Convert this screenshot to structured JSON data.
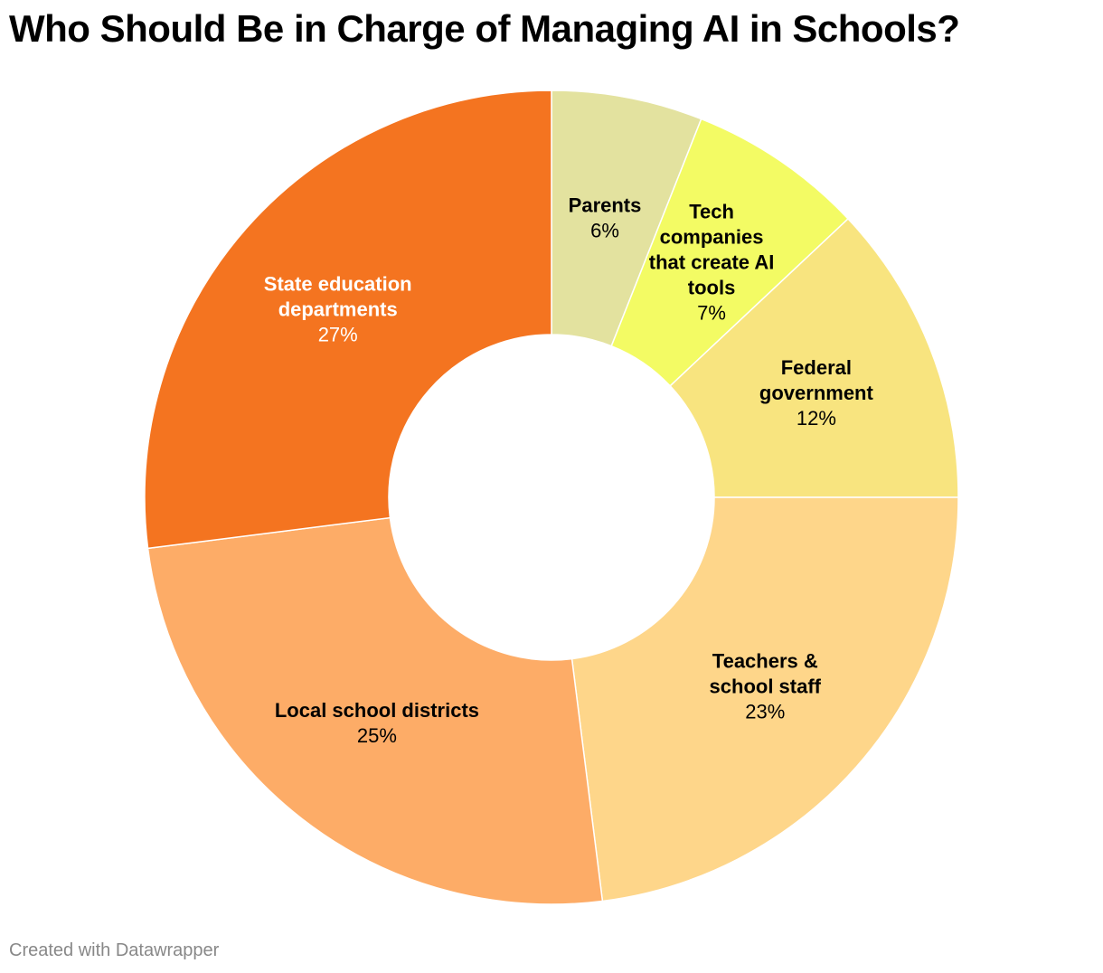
{
  "title": "Who Should Be in Charge of Managing AI in Schools?",
  "footer": {
    "credit": "Created with Datawrapper"
  },
  "chart_data": {
    "type": "pie",
    "donut": true,
    "title": "Who Should Be in Charge of Managing AI in Schools?",
    "unit": "%",
    "slices": [
      {
        "label": "Parents",
        "label_lines": [
          "Parents"
        ],
        "value": 6,
        "value_label": "6%",
        "color": "#e3e29f",
        "text_color": "#000000"
      },
      {
        "label": "Tech companies that create AI tools",
        "label_lines": [
          "Tech",
          "companies",
          "that create AI",
          "tools"
        ],
        "value": 7,
        "value_label": "7%",
        "color": "#f3fb64",
        "text_color": "#000000"
      },
      {
        "label": "Federal government",
        "label_lines": [
          "Federal",
          "government"
        ],
        "value": 12,
        "value_label": "12%",
        "color": "#f8e47f",
        "text_color": "#000000"
      },
      {
        "label": "Teachers & school staff",
        "label_lines": [
          "Teachers &",
          "school staff"
        ],
        "value": 23,
        "value_label": "23%",
        "color": "#fed68a",
        "text_color": "#000000"
      },
      {
        "label": "Local school districts",
        "label_lines": [
          "Local school districts"
        ],
        "value": 25,
        "value_label": "25%",
        "color": "#fdac67",
        "text_color": "#000000"
      },
      {
        "label": "State education departments",
        "label_lines": [
          "State education",
          "departments"
        ],
        "value": 27,
        "value_label": "27%",
        "color": "#f47420",
        "text_color": "#ffffff"
      }
    ]
  }
}
